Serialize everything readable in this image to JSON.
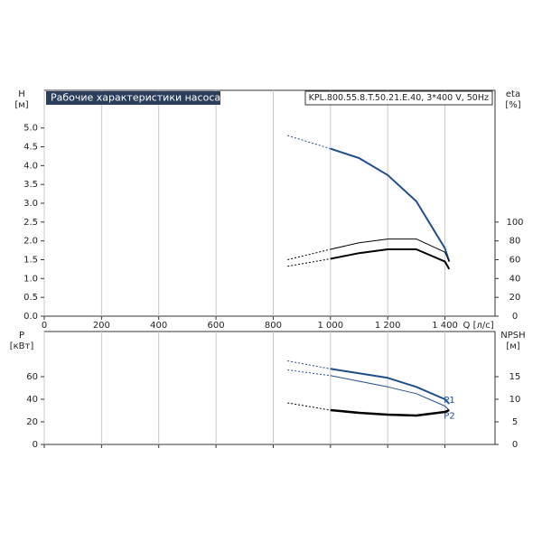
{
  "chart_data": [
    {
      "type": "line",
      "title": "Рабочие характеристики насоса",
      "subtitle": "KPL.800.55.8.T.50.21.E.40, 3*400 V, 50Hz",
      "x_label": "Q [л/с]",
      "y_label": "H",
      "y_unit": "[м]",
      "y2_label": "eta",
      "y2_unit": "[%]",
      "xlim": [
        0,
        1575
      ],
      "ylim": [
        0,
        6
      ],
      "y2lim": [
        0,
        240
      ],
      "xticks": [
        0,
        200,
        400,
        600,
        800,
        {
          "value": 1000,
          "label": "1 000"
        },
        {
          "value": 1200,
          "label": "1 200"
        },
        {
          "value": 1400,
          "label": "1 400"
        }
      ],
      "yticks": [
        {
          "value": 0,
          "label": "0.0"
        },
        0.5,
        {
          "value": 1,
          "label": "1.0"
        },
        1.5,
        {
          "value": 2,
          "label": "2.0"
        },
        2.5,
        {
          "value": 3,
          "label": "3.0"
        },
        3.5,
        {
          "value": 4,
          "label": "4.0"
        },
        4.5,
        {
          "value": 5,
          "label": "5.0"
        }
      ],
      "y2ticks": [
        0,
        20,
        40,
        60,
        80,
        100
      ],
      "grid": "x",
      "extrapolated_range": [
        850,
        1000
      ],
      "series": [
        {
          "color": "#1f4e8c",
          "width": 2,
          "x": [
            850,
            1000,
            1100,
            1200,
            1300,
            1400,
            1415
          ],
          "values": [
            4.8,
            4.45,
            4.2,
            3.75,
            3.05,
            1.8,
            1.45
          ]
        },
        {
          "color": "#000000",
          "width": 1,
          "axis": "y2",
          "x": [
            850,
            1000,
            1100,
            1200,
            1300,
            1400,
            1415
          ],
          "values": [
            60,
            71,
            78,
            82,
            82,
            68,
            58
          ]
        },
        {
          "color": "#000000",
          "width": 2,
          "axis": "y2",
          "x": [
            850,
            1000,
            1100,
            1200,
            1300,
            1400,
            1415
          ],
          "values": [
            53,
            61,
            67,
            71,
            71,
            58,
            50
          ]
        }
      ]
    },
    {
      "type": "line",
      "y_label": "P",
      "y_unit": "[кВт]",
      "y2_label": "NPSH",
      "y2_unit": "[м]",
      "xlim": [
        0,
        1575
      ],
      "ylim": [
        0,
        100
      ],
      "y2lim": [
        0,
        25
      ],
      "xticks": [
        0,
        200,
        400,
        600,
        800,
        1000,
        1200,
        1400
      ],
      "show_x_labels": false,
      "yticks": [
        0,
        20,
        40,
        60
      ],
      "y2ticks": [
        0,
        5,
        10,
        15
      ],
      "grid": "x",
      "extrapolated_range": [
        850,
        1000
      ],
      "series": [
        {
          "name": "P1",
          "color": "#1f4e8c",
          "width": 2,
          "x": [
            850,
            1000,
            1100,
            1200,
            1300,
            1400,
            1415
          ],
          "values": [
            74,
            67,
            63,
            59,
            51,
            40,
            36
          ]
        },
        {
          "name": "P2",
          "color": "#1f4e8c",
          "width": 1,
          "x": [
            850,
            1000,
            1100,
            1200,
            1300,
            1400,
            1415
          ],
          "values": [
            66,
            61,
            56,
            51,
            45,
            34,
            30
          ]
        },
        {
          "color": "#000000",
          "width": 2.5,
          "axis": "y2",
          "x": [
            850,
            1000,
            1100,
            1200,
            1300,
            1400,
            1415
          ],
          "values": [
            9.2,
            7.6,
            7.0,
            6.6,
            6.4,
            7.2,
            7.6
          ]
        }
      ]
    }
  ]
}
